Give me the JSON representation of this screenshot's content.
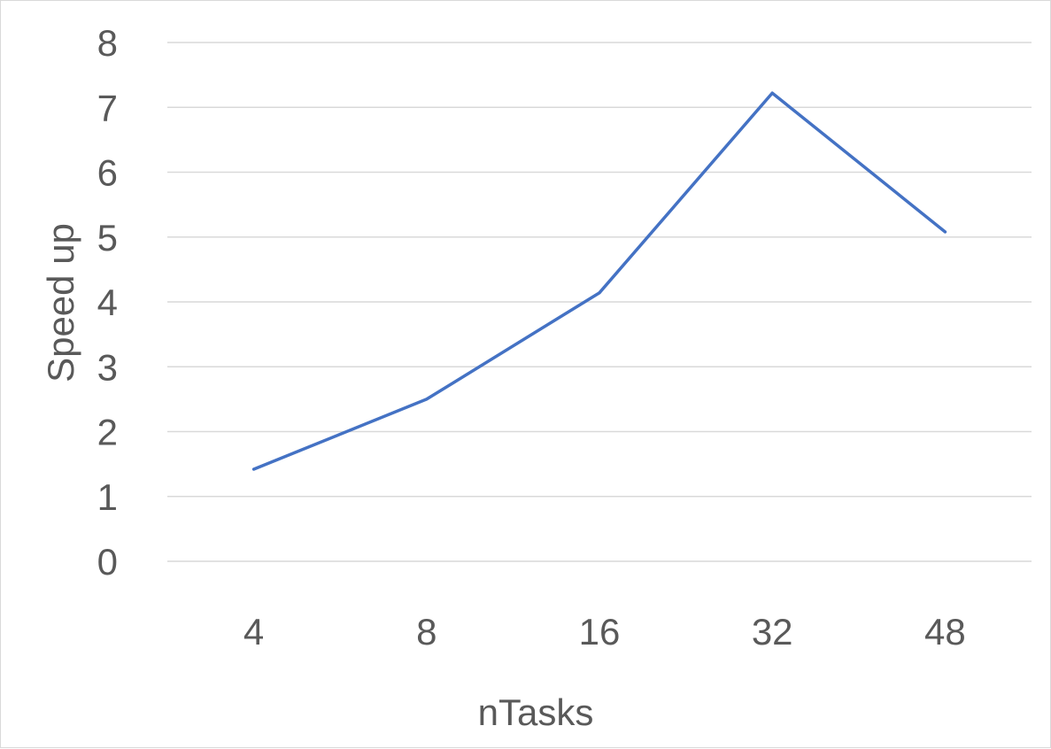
{
  "chart_data": {
    "type": "line",
    "title": "",
    "xlabel": "nTasks",
    "ylabel": "Speed up",
    "categories": [
      "4",
      "8",
      "16",
      "32",
      "48"
    ],
    "series": [
      {
        "values": [
          1.42,
          2.5,
          4.14,
          7.22,
          5.08
        ],
        "color": "#4472c4"
      }
    ],
    "ylim": [
      0,
      8
    ],
    "yticks": [
      "0",
      "1",
      "2",
      "3",
      "4",
      "5",
      "6",
      "7",
      "8"
    ],
    "grid": true,
    "legend": "none"
  }
}
